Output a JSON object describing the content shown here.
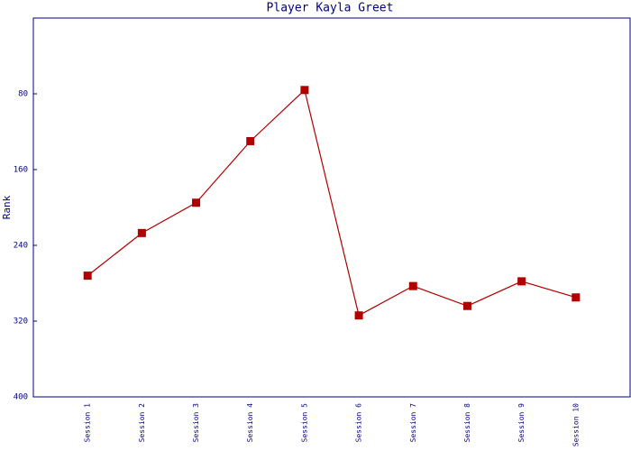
{
  "chart_data": {
    "type": "line",
    "title": "Player Kayla Greet",
    "y_label": "Rank",
    "categories": [
      "Session 1",
      "Session 2",
      "Session 3",
      "Session 4",
      "Session 5",
      "Session 6",
      "Session 7",
      "Session 8",
      "Session 9",
      "Session 10"
    ],
    "series": [
      {
        "name": "Rank",
        "color": "#b00000",
        "values": [
          272,
          227,
          195,
          130,
          76,
          314,
          283,
          304,
          278,
          295
        ]
      }
    ],
    "ylim": [
      0,
      400
    ],
    "yticks": [
      80,
      160,
      240,
      320,
      400
    ],
    "y_inverted": true,
    "grid": false,
    "legend": false
  }
}
